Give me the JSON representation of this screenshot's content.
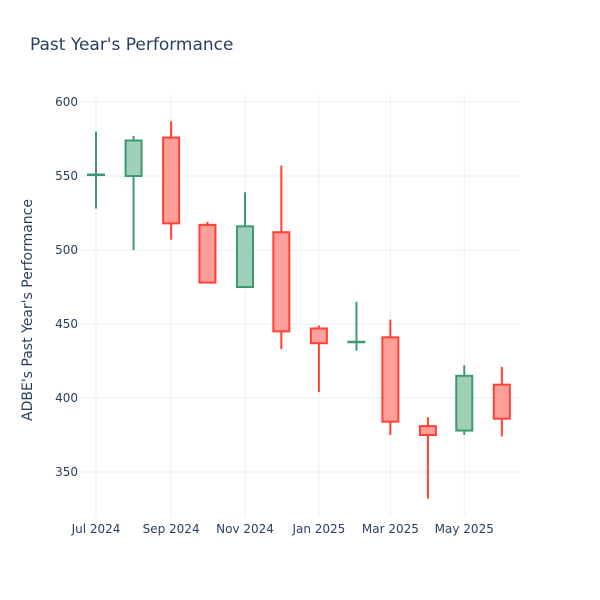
{
  "chart_data": {
    "type": "candlestick",
    "title": "Past Year's Performance",
    "xlabel": "",
    "ylabel": "ADBE's Past Year's Performance",
    "ylim": [
      320,
      605
    ],
    "yticks": [
      350,
      400,
      450,
      500,
      550,
      600
    ],
    "xticks": [
      {
        "label": "Jul 2024",
        "date": "2024-07-01"
      },
      {
        "label": "Sep 2024",
        "date": "2024-09-01"
      },
      {
        "label": "Nov 2024",
        "date": "2024-11-01"
      },
      {
        "label": "Jan 2025",
        "date": "2025-01-01"
      },
      {
        "label": "Mar 2025",
        "date": "2025-03-01"
      },
      {
        "label": "May 2025",
        "date": "2025-05-01"
      }
    ],
    "grid": true,
    "legend": "none",
    "colors": {
      "increasing": "#3d9970",
      "decreasing": "#ff4136",
      "increasing_fill": "#9fcfb7",
      "decreasing_fill": "#ff9f9a"
    },
    "candles": [
      {
        "date": "2024-07-01",
        "open": 551,
        "high": 580,
        "low": 528,
        "close": 551
      },
      {
        "date": "2024-08-01",
        "open": 550,
        "high": 577,
        "low": 500,
        "close": 574
      },
      {
        "date": "2024-09-01",
        "open": 576,
        "high": 587,
        "low": 507,
        "close": 518
      },
      {
        "date": "2024-10-01",
        "open": 517,
        "high": 519,
        "low": 478,
        "close": 478
      },
      {
        "date": "2024-11-01",
        "open": 475,
        "high": 539,
        "low": 475,
        "close": 516
      },
      {
        "date": "2024-12-01",
        "open": 512,
        "high": 557,
        "low": 433,
        "close": 445
      },
      {
        "date": "2025-01-01",
        "open": 447,
        "high": 449,
        "low": 404,
        "close": 437
      },
      {
        "date": "2025-02-01",
        "open": 438,
        "high": 465,
        "low": 432,
        "close": 438
      },
      {
        "date": "2025-03-01",
        "open": 441,
        "high": 453,
        "low": 375,
        "close": 384
      },
      {
        "date": "2025-04-01",
        "open": 381,
        "high": 387,
        "low": 332,
        "close": 375
      },
      {
        "date": "2025-05-01",
        "open": 378,
        "high": 422,
        "low": 375,
        "close": 415
      },
      {
        "date": "2025-06-01",
        "open": 409,
        "high": 421,
        "low": 374,
        "close": 386
      }
    ]
  }
}
